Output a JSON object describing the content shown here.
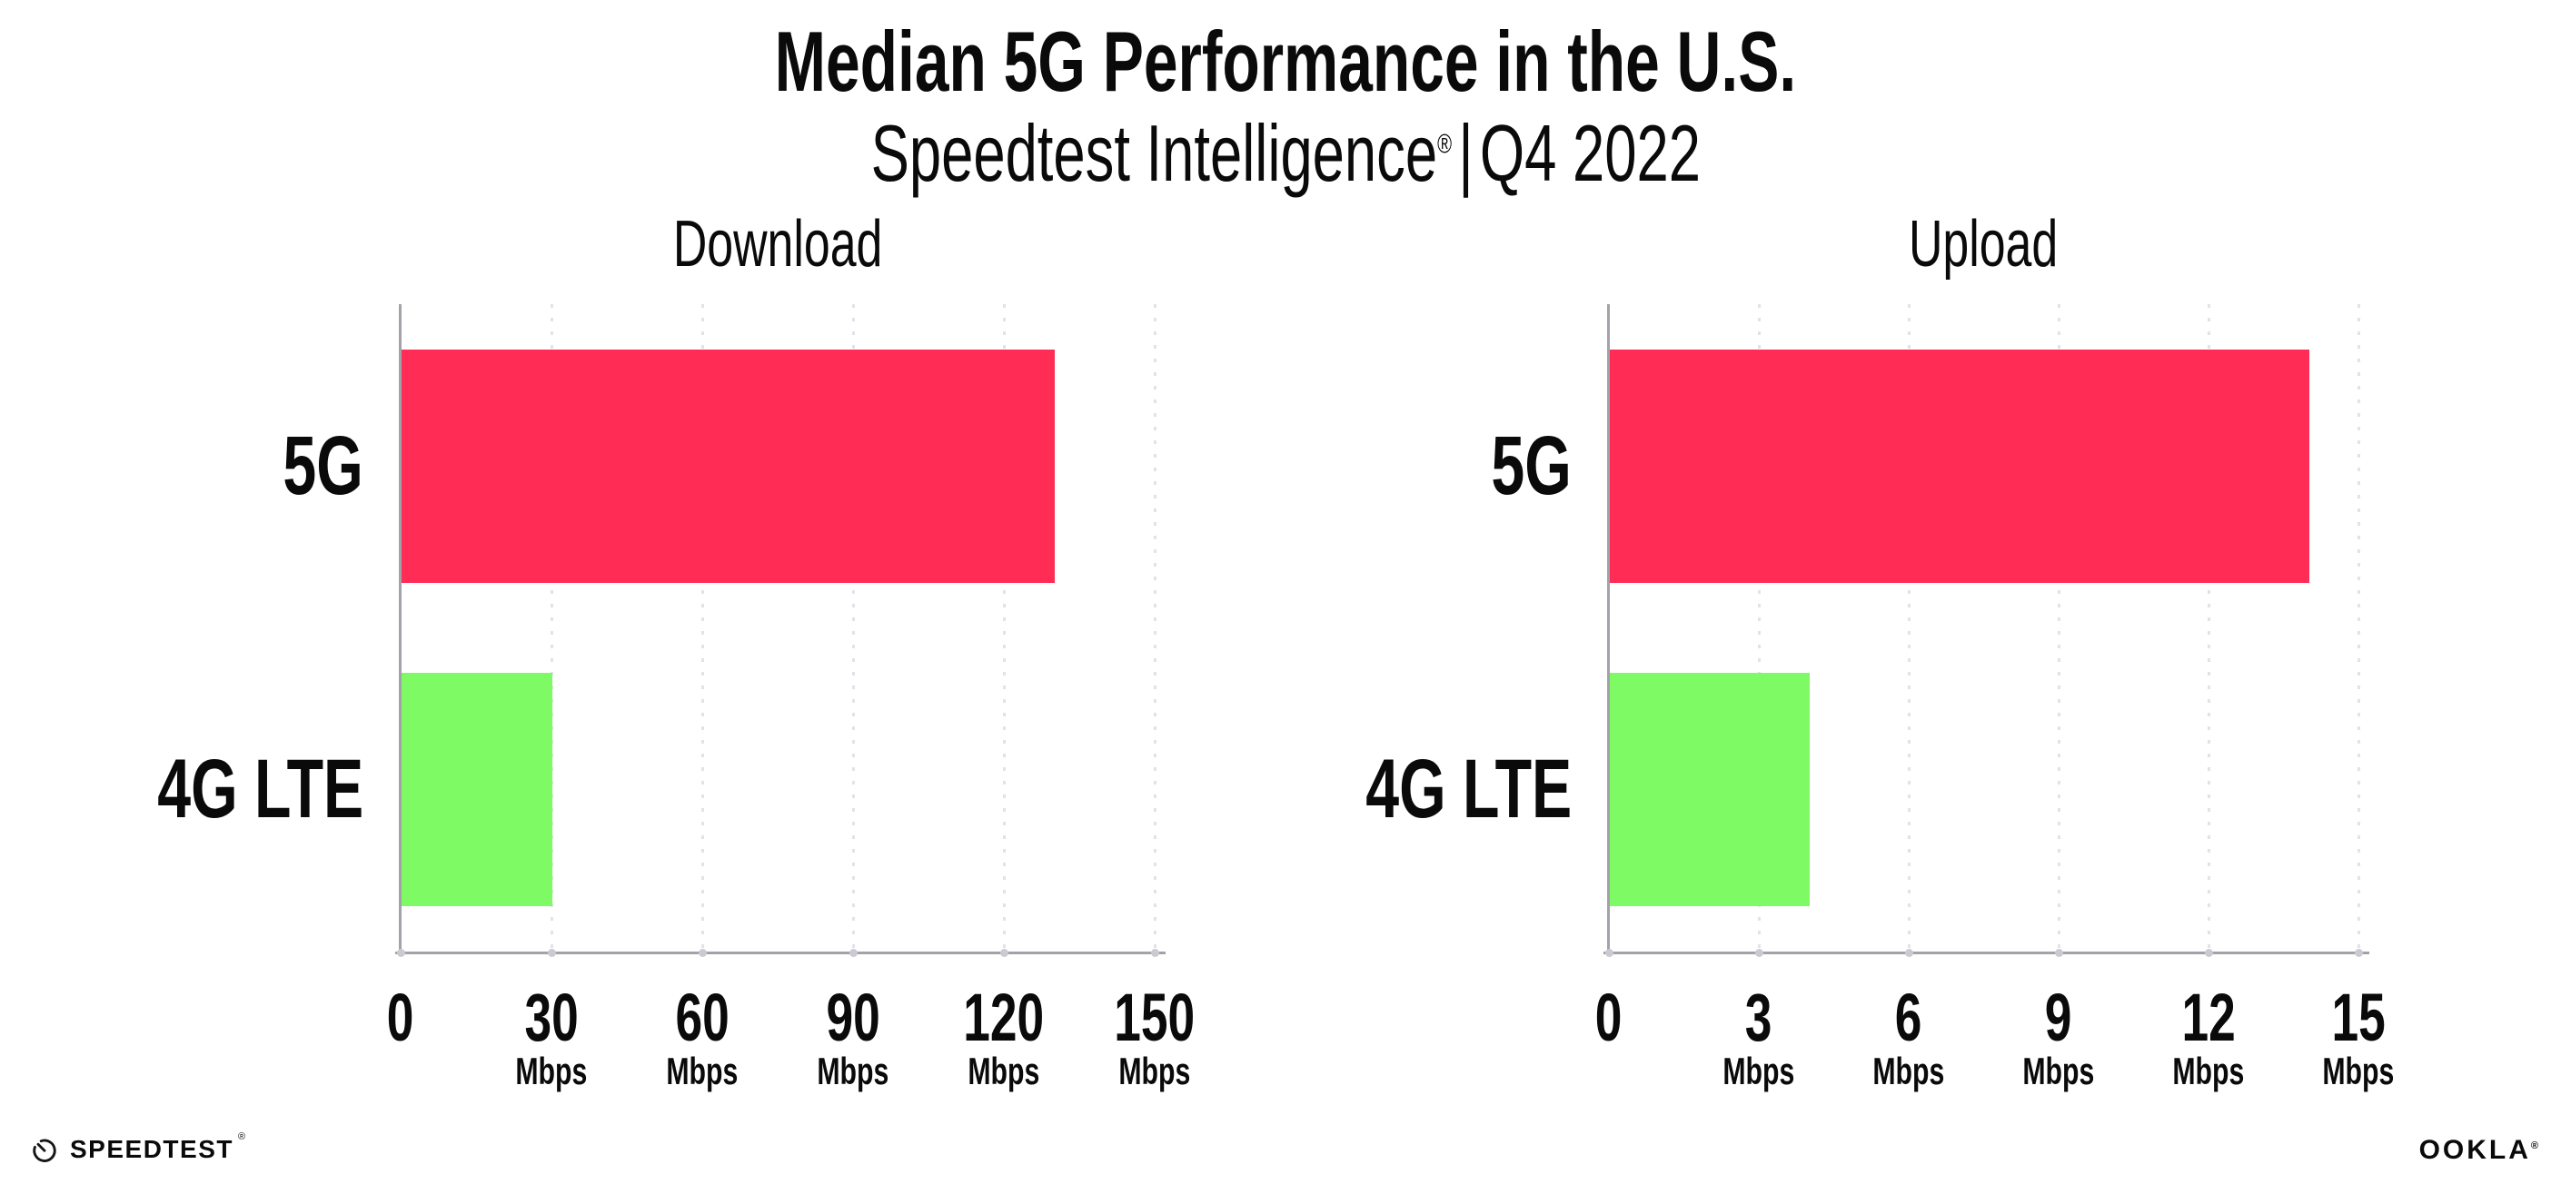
{
  "header": {
    "title": "Median 5G Performance in the U.S.",
    "subtitle": {
      "brand": "Speedtest Intelligence",
      "registered_mark": "®",
      "separator": "|",
      "period": "Q4 2022"
    }
  },
  "chart_data": [
    {
      "type": "bar",
      "orientation": "horizontal",
      "title": "Download",
      "categories": [
        "5G",
        "4G LTE"
      ],
      "values": [
        130,
        30
      ],
      "unit": "Mbps",
      "xlim": [
        0,
        150
      ],
      "xticks": [
        0,
        30,
        60,
        90,
        120,
        150
      ],
      "grid": "dotted vertical gridlines at each tick",
      "legend": "none",
      "bar_colors": [
        "#ff2d55",
        "#7dfa64"
      ]
    },
    {
      "type": "bar",
      "orientation": "horizontal",
      "title": "Upload",
      "categories": [
        "5G",
        "4G LTE"
      ],
      "values": [
        14,
        4
      ],
      "unit": "Mbps",
      "xlim": [
        0,
        15
      ],
      "xticks": [
        0,
        3,
        6,
        9,
        12,
        15
      ],
      "grid": "dotted vertical gridlines at each tick",
      "legend": "none",
      "bar_colors": [
        "#ff2d55",
        "#7dfa64"
      ]
    }
  ],
  "footer": {
    "speedtest": {
      "label": "SPEEDTEST",
      "mark": "®"
    },
    "ookla": {
      "label": "OOKLA",
      "mark": "®"
    }
  },
  "colors": {
    "bar_5g": "#ff2d55",
    "bar_4g_lte": "#7dfa64",
    "axis": "#a2a2a8",
    "gridline": "#e2e2ea",
    "text": "#0a0a0b",
    "background": "#ffffff"
  }
}
